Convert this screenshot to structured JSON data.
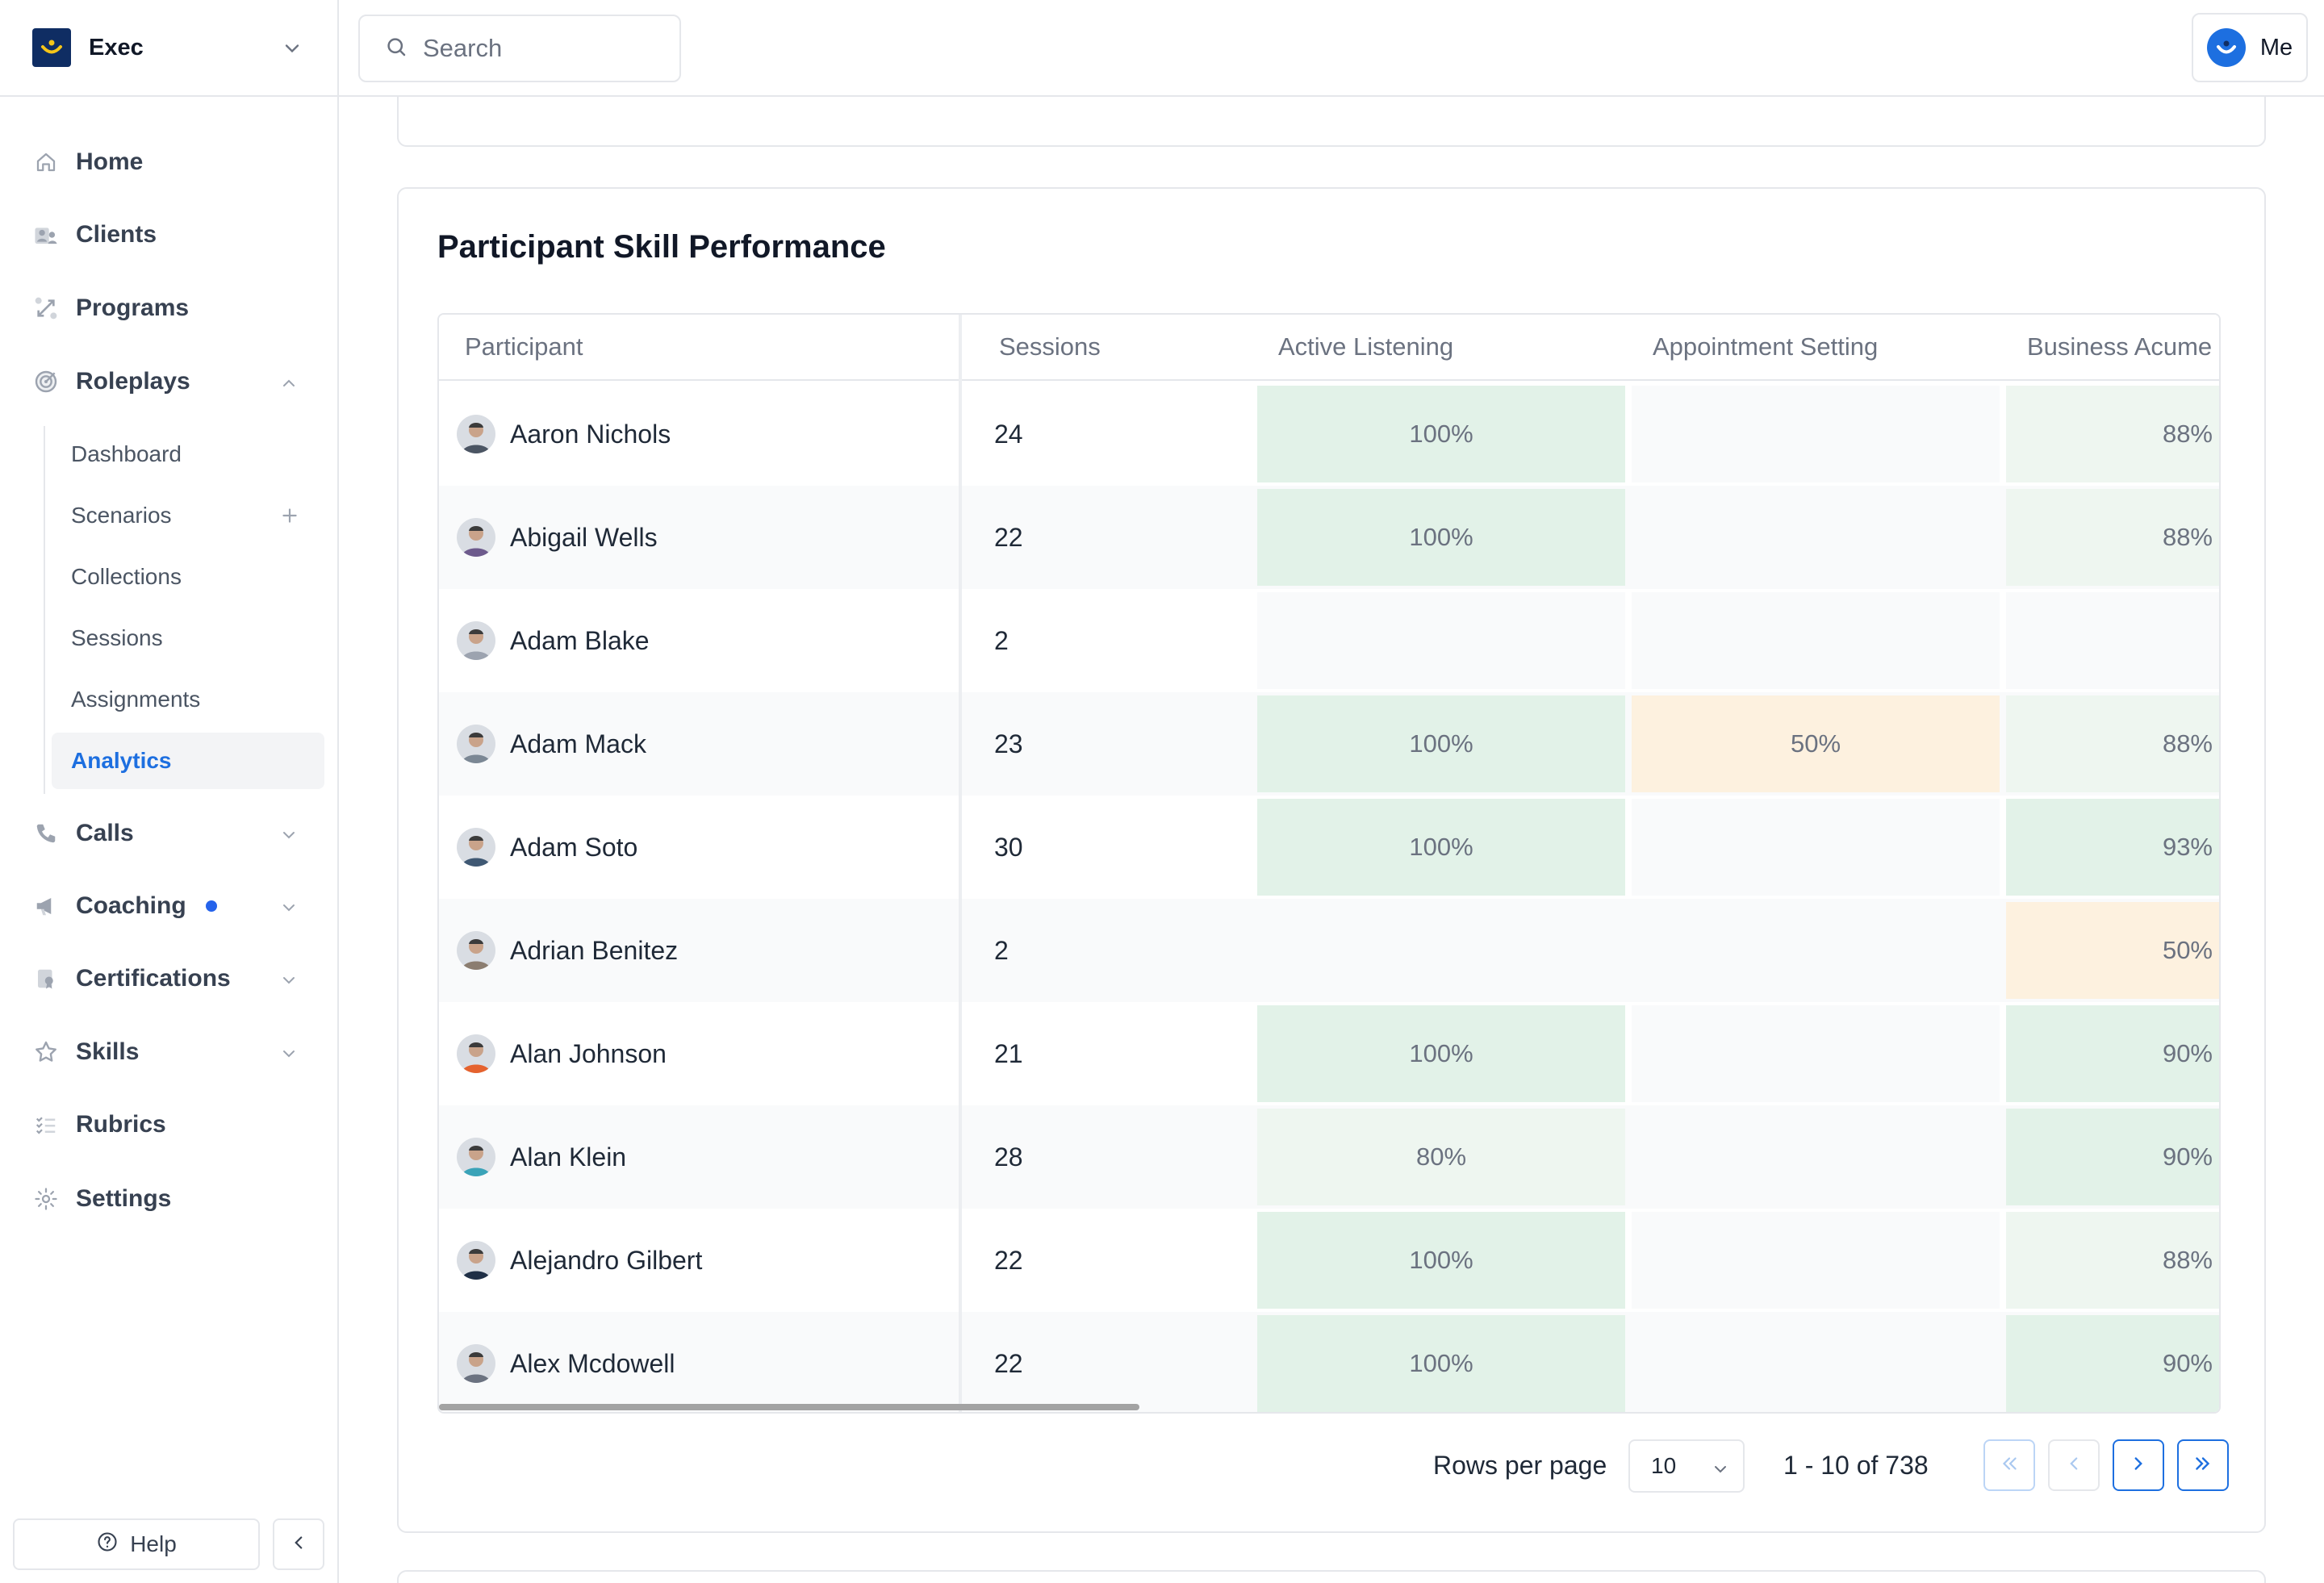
{
  "org": {
    "name": "Exec"
  },
  "search": {
    "placeholder": "Search"
  },
  "user": {
    "label": "Me"
  },
  "sidebar": {
    "items": [
      {
        "label": "Home",
        "icon": "home-icon"
      },
      {
        "label": "Clients",
        "icon": "clients-icon"
      },
      {
        "label": "Programs",
        "icon": "programs-icon"
      },
      {
        "label": "Roleplays",
        "icon": "target-icon",
        "expanded": true
      },
      {
        "label": "Calls",
        "icon": "phone-icon"
      },
      {
        "label": "Coaching",
        "icon": "megaphone-icon",
        "badge_dot": true
      },
      {
        "label": "Certifications",
        "icon": "certificate-icon"
      },
      {
        "label": "Skills",
        "icon": "star-icon"
      },
      {
        "label": "Rubrics",
        "icon": "list-check-icon"
      },
      {
        "label": "Settings",
        "icon": "gear-icon"
      }
    ],
    "roleplays_sub": [
      {
        "label": "Dashboard"
      },
      {
        "label": "Scenarios"
      },
      {
        "label": "Collections"
      },
      {
        "label": "Sessions"
      },
      {
        "label": "Assignments"
      },
      {
        "label": "Analytics",
        "active": true
      }
    ],
    "help_label": "Help"
  },
  "card": {
    "title": "Participant Skill Performance",
    "columns": [
      "Participant",
      "Sessions",
      "Active Listening",
      "Appointment Setting",
      "Business Acume"
    ],
    "rows": [
      {
        "name": "Aaron Nichols",
        "sessions": "24",
        "active_listening": "100%",
        "appointment_setting": "",
        "business_acumen": "88%"
      },
      {
        "name": "Abigail Wells",
        "sessions": "22",
        "active_listening": "100%",
        "appointment_setting": "",
        "business_acumen": "88%"
      },
      {
        "name": "Adam Blake",
        "sessions": "2",
        "active_listening": "",
        "appointment_setting": "",
        "business_acumen": ""
      },
      {
        "name": "Adam Mack",
        "sessions": "23",
        "active_listening": "100%",
        "appointment_setting": "50%",
        "business_acumen": "88%"
      },
      {
        "name": "Adam Soto",
        "sessions": "30",
        "active_listening": "100%",
        "appointment_setting": "",
        "business_acumen": "93%"
      },
      {
        "name": "Adrian Benitez",
        "sessions": "2",
        "active_listening": "",
        "appointment_setting": "",
        "business_acumen": "50%"
      },
      {
        "name": "Alan Johnson",
        "sessions": "21",
        "active_listening": "100%",
        "appointment_setting": "",
        "business_acumen": "90%"
      },
      {
        "name": "Alan Klein",
        "sessions": "28",
        "active_listening": "80%",
        "appointment_setting": "",
        "business_acumen": "90%"
      },
      {
        "name": "Alejandro Gilbert",
        "sessions": "22",
        "active_listening": "100%",
        "appointment_setting": "",
        "business_acumen": "88%"
      },
      {
        "name": "Alex Mcdowell",
        "sessions": "22",
        "active_listening": "100%",
        "appointment_setting": "",
        "business_acumen": "90%"
      }
    ],
    "pagination": {
      "rows_per_page_label": "Rows per page",
      "rows_per_page_value": "10",
      "range_label": "1 - 10 of 738"
    }
  },
  "colors": {
    "accent": "#1d6fe0",
    "score_high": "#e2f2e8",
    "score_mid": "#eef6f0",
    "score_low": "#fdf1df",
    "score_empty": "#f9fafb"
  }
}
